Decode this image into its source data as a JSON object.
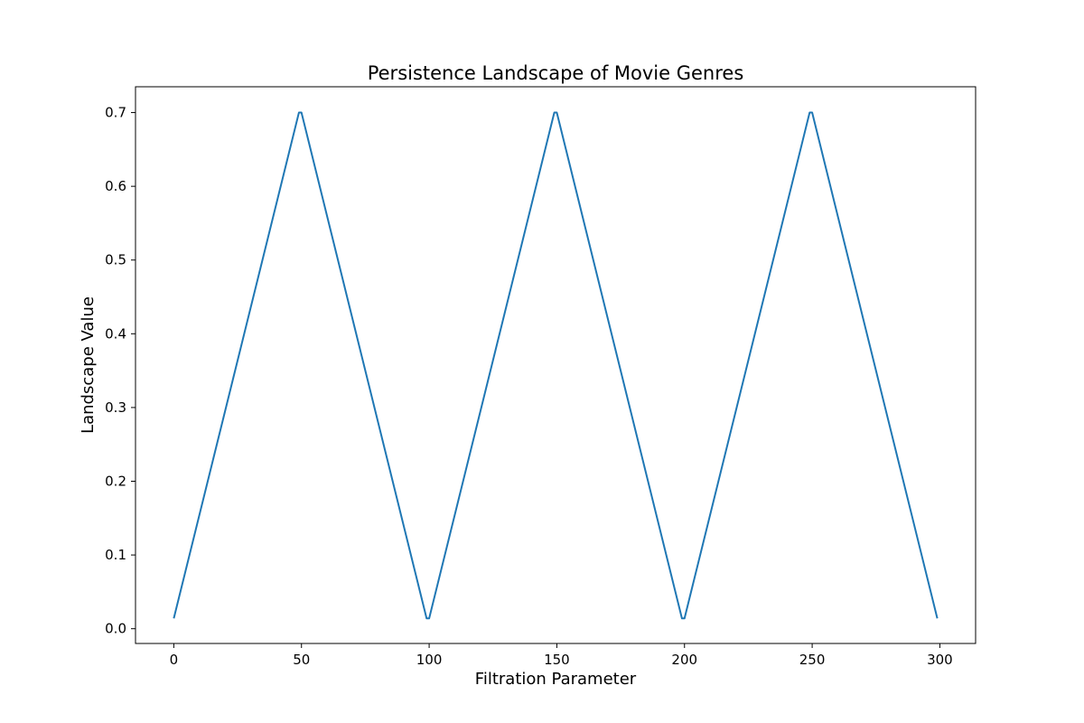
{
  "chart_data": {
    "type": "line",
    "title": "Persistence Landscape of Movie Genres",
    "xlabel": "Filtration Parameter",
    "ylabel": "Landscape Value",
    "xlim": [
      -15,
      314
    ],
    "ylim": [
      -0.02,
      0.735
    ],
    "xticks": [
      0,
      50,
      100,
      150,
      200,
      250,
      300
    ],
    "xtick_labels": [
      "0",
      "50",
      "100",
      "150",
      "200",
      "250",
      "300"
    ],
    "yticks": [
      0.0,
      0.1,
      0.2,
      0.3,
      0.4,
      0.5,
      0.6,
      0.7
    ],
    "ytick_labels": [
      "0.0",
      "0.1",
      "0.2",
      "0.3",
      "0.4",
      "0.5",
      "0.6",
      "0.7"
    ],
    "grid": false,
    "series": [
      {
        "color": "#1f77b4",
        "x": [
          0,
          49,
          50,
          99,
          100,
          149,
          150,
          199,
          200,
          249,
          250,
          299
        ],
        "y": [
          0.014,
          0.7,
          0.7,
          0.014,
          0.014,
          0.7,
          0.7,
          0.014,
          0.014,
          0.7,
          0.7,
          0.014
        ]
      }
    ]
  }
}
